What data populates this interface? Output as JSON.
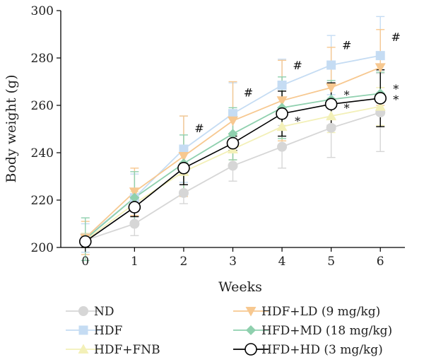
{
  "chart_data": {
    "type": "line",
    "title": "",
    "xlabel": "Weeks",
    "ylabel": "Body weight (g)",
    "x": [
      0,
      1,
      2,
      3,
      4,
      5,
      6
    ],
    "xlim": [
      -0.5,
      6.5
    ],
    "ylim": [
      200,
      300
    ],
    "yticks": [
      200,
      220,
      240,
      260,
      280,
      300
    ],
    "grid": false,
    "legend_position": "bottom",
    "series": [
      {
        "name": "ND",
        "color": "#d6d6d6",
        "marker": "circle",
        "values": [
          203,
          210,
          223,
          234.5,
          242.5,
          250.5,
          257
        ],
        "errors": [
          3,
          5,
          4.5,
          6.5,
          9,
          12.5,
          16.5
        ]
      },
      {
        "name": "HDF",
        "color": "#c5dcf3",
        "marker": "square",
        "values": [
          204,
          221,
          241.5,
          256.5,
          268.5,
          277,
          281
        ],
        "errors": [
          6,
          10,
          14,
          13,
          11,
          12.5,
          16.5
        ]
      },
      {
        "name": "HDF+FNB",
        "color": "#f3f0b8",
        "marker": "triangle-up",
        "values": [
          203,
          218.5,
          232,
          241.5,
          251,
          255.5,
          259.5
        ],
        "errors": [
          3,
          5,
          8,
          6,
          6,
          7,
          8
        ]
      },
      {
        "name": "HDF+LD (9 mg/kg)",
        "color": "#f7c890",
        "marker": "triangle-down",
        "values": [
          204,
          223.5,
          238.5,
          253.5,
          262,
          267.5,
          276
        ],
        "errors": [
          7,
          10,
          17,
          16.5,
          17,
          17,
          16
        ]
      },
      {
        "name": "HFD+MD (18 mg/kg)",
        "color": "#8fd0ae",
        "marker": "diamond",
        "values": [
          203.5,
          221,
          235.5,
          248,
          259,
          262.5,
          265
        ],
        "errors": [
          9,
          11,
          12,
          11,
          13,
          8,
          9
        ]
      },
      {
        "name": "HFD+HD (3 mg/kg)",
        "color": "#000000",
        "marker": "open-circle",
        "values": [
          202.5,
          217,
          233.5,
          244,
          256.5,
          260.5,
          263
        ],
        "errors": [
          2.5,
          4,
          7,
          3,
          9.5,
          9,
          12
        ]
      }
    ],
    "annotations": [
      {
        "text": "#",
        "x": 2,
        "y": 250.5
      },
      {
        "text": "#",
        "x": 3,
        "y": 265.5
      },
      {
        "text": "#",
        "x": 4,
        "y": 277
      },
      {
        "text": "#",
        "x": 5,
        "y": 285.5
      },
      {
        "text": "#",
        "x": 6,
        "y": 289
      },
      {
        "text": "*",
        "x": 4,
        "y": 253.5
      },
      {
        "text": "*",
        "x": 5,
        "y": 264.5
      },
      {
        "text": "*",
        "x": 5,
        "y": 259
      },
      {
        "text": "*",
        "x": 6,
        "y": 267
      },
      {
        "text": "*",
        "x": 6,
        "y": 262.5
      }
    ]
  }
}
